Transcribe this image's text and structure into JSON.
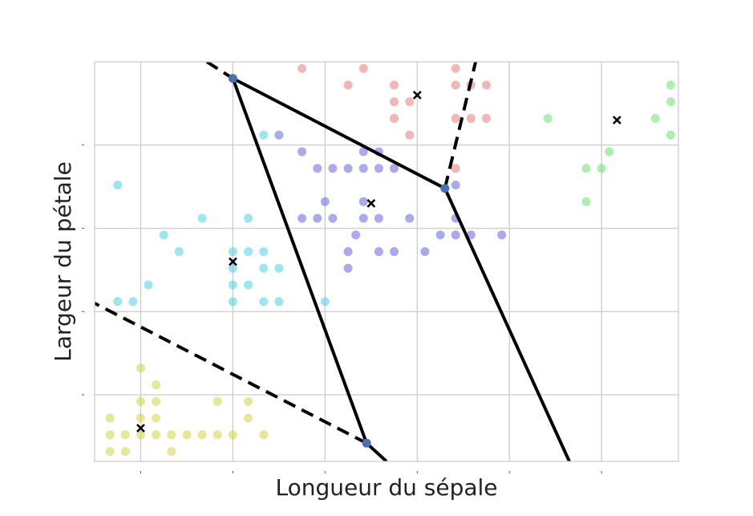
{
  "chart_data": {
    "type": "scatter",
    "title": "",
    "xlabel": "Longueur du sépale",
    "ylabel": "Largeur du pétale",
    "xlim": [
      4.2,
      8.0
    ],
    "ylim": [
      0.0,
      2.4
    ],
    "xticks": [
      4.5,
      5.1,
      5.7,
      6.3,
      6.9,
      7.5
    ],
    "yticks": [
      0.4,
      0.9,
      1.4,
      1.9
    ],
    "grid": true,
    "legend": "none",
    "colors": {
      "yellow": "#cfd346",
      "cyan": "#4fd2e0",
      "blue": "#6464e0",
      "red": "#e57a7a",
      "green": "#6fe06f",
      "edge": "#000000",
      "vertex": "#4a6fb5"
    },
    "series": [
      {
        "color": "yellow",
        "points": [
          [
            4.3,
            0.26
          ],
          [
            4.3,
            0.16
          ],
          [
            4.3,
            0.06
          ],
          [
            4.4,
            0.16
          ],
          [
            4.4,
            0.06
          ],
          [
            4.5,
            0.36
          ],
          [
            4.5,
            0.26
          ],
          [
            4.5,
            0.16
          ],
          [
            4.5,
            0.56
          ],
          [
            4.6,
            0.46
          ],
          [
            4.6,
            0.36
          ],
          [
            4.6,
            0.26
          ],
          [
            4.6,
            0.16
          ],
          [
            4.7,
            0.16
          ],
          [
            4.7,
            0.06
          ],
          [
            4.8,
            0.16
          ],
          [
            4.9,
            0.16
          ],
          [
            5.0,
            0.36
          ],
          [
            5.0,
            0.16
          ],
          [
            5.1,
            0.16
          ],
          [
            5.2,
            0.36
          ],
          [
            5.2,
            0.26
          ],
          [
            5.3,
            0.16
          ]
        ]
      },
      {
        "color": "cyan",
        "points": [
          [
            4.35,
            1.66
          ],
          [
            4.35,
            0.96
          ],
          [
            4.45,
            0.96
          ],
          [
            4.55,
            1.06
          ],
          [
            4.65,
            1.36
          ],
          [
            4.75,
            1.26
          ],
          [
            4.9,
            1.46
          ],
          [
            5.1,
            1.26
          ],
          [
            5.1,
            1.16
          ],
          [
            5.1,
            1.06
          ],
          [
            5.1,
            0.96
          ],
          [
            5.2,
            1.26
          ],
          [
            5.2,
            1.06
          ],
          [
            5.3,
            1.26
          ],
          [
            5.3,
            1.16
          ],
          [
            5.3,
            0.96
          ],
          [
            5.4,
            1.16
          ],
          [
            5.4,
            0.96
          ],
          [
            5.7,
            0.96
          ],
          [
            5.2,
            1.46
          ],
          [
            5.3,
            1.96
          ]
        ]
      },
      {
        "color": "blue",
        "points": [
          [
            5.4,
            1.96
          ],
          [
            5.55,
            1.86
          ],
          [
            5.65,
            1.76
          ],
          [
            5.75,
            1.76
          ],
          [
            5.85,
            1.76
          ],
          [
            5.95,
            1.76
          ],
          [
            6.05,
            1.76
          ],
          [
            6.15,
            1.76
          ],
          [
            5.95,
            1.86
          ],
          [
            6.05,
            1.86
          ],
          [
            5.55,
            1.46
          ],
          [
            5.65,
            1.46
          ],
          [
            5.75,
            1.46
          ],
          [
            5.95,
            1.46
          ],
          [
            6.05,
            1.46
          ],
          [
            6.25,
            1.46
          ],
          [
            6.55,
            1.46
          ],
          [
            5.7,
            1.56
          ],
          [
            5.95,
            1.56
          ],
          [
            5.9,
            1.36
          ],
          [
            5.85,
            1.26
          ],
          [
            5.85,
            1.16
          ],
          [
            6.05,
            1.26
          ],
          [
            6.15,
            1.26
          ],
          [
            6.35,
            1.26
          ],
          [
            6.45,
            1.36
          ],
          [
            6.55,
            1.36
          ],
          [
            6.65,
            1.36
          ],
          [
            6.85,
            1.36
          ],
          [
            6.55,
            1.66
          ]
        ]
      },
      {
        "color": "red",
        "points": [
          [
            5.55,
            2.36
          ],
          [
            5.95,
            2.36
          ],
          [
            6.55,
            2.36
          ],
          [
            5.85,
            2.26
          ],
          [
            6.15,
            2.26
          ],
          [
            6.55,
            2.26
          ],
          [
            6.65,
            2.26
          ],
          [
            6.75,
            2.26
          ],
          [
            6.15,
            2.16
          ],
          [
            6.25,
            2.16
          ],
          [
            6.15,
            2.06
          ],
          [
            6.55,
            2.06
          ],
          [
            6.65,
            2.06
          ],
          [
            6.75,
            2.06
          ],
          [
            6.25,
            1.96
          ],
          [
            6.55,
            1.76
          ]
        ]
      },
      {
        "color": "green",
        "points": [
          [
            7.95,
            2.26
          ],
          [
            7.95,
            2.16
          ],
          [
            7.85,
            2.06
          ],
          [
            7.95,
            1.96
          ],
          [
            7.15,
            2.06
          ],
          [
            7.55,
            1.86
          ],
          [
            7.4,
            1.76
          ],
          [
            7.5,
            1.76
          ],
          [
            7.4,
            1.56
          ]
        ]
      }
    ],
    "centroids": [
      [
        4.5,
        0.2
      ],
      [
        5.1,
        1.2
      ],
      [
        6.0,
        1.55
      ],
      [
        6.3,
        2.2
      ],
      [
        7.6,
        2.05
      ]
    ],
    "voronoi_vertices": [
      [
        5.1,
        2.3
      ],
      [
        6.48,
        1.64
      ],
      [
        5.97,
        0.11
      ]
    ],
    "voronoi_edges": [
      {
        "from": [
          4.93,
          2.4
        ],
        "to": [
          5.1,
          2.3
        ],
        "style": "dashed"
      },
      {
        "from": [
          5.1,
          2.3
        ],
        "to": [
          6.48,
          1.64
        ],
        "style": "solid"
      },
      {
        "from": [
          5.1,
          2.3
        ],
        "to": [
          5.97,
          0.11
        ],
        "style": "solid"
      },
      {
        "from": [
          6.48,
          1.64
        ],
        "to": [
          6.68,
          2.4
        ],
        "style": "dashed"
      },
      {
        "from": [
          6.48,
          1.64
        ],
        "to": [
          7.29,
          0.0
        ],
        "style": "solid"
      },
      {
        "from": [
          5.97,
          0.11
        ],
        "to": [
          4.2,
          0.95
        ],
        "style": "dashed"
      },
      {
        "from": [
          5.97,
          0.11
        ],
        "to": [
          6.1,
          0.0
        ],
        "style": "solid"
      }
    ]
  }
}
